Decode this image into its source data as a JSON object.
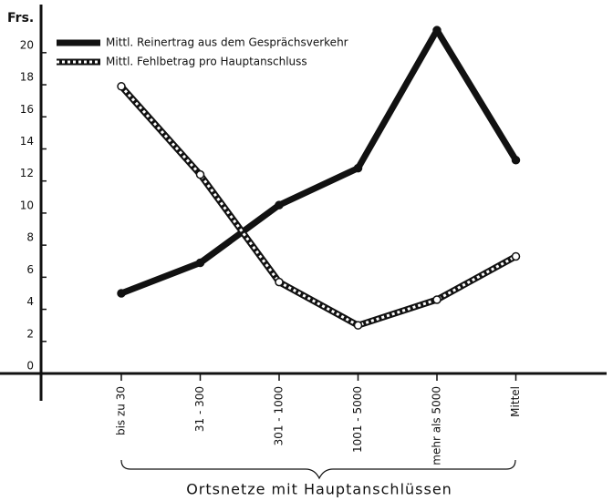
{
  "chart_data": {
    "type": "line",
    "y_unit": "Frs.",
    "x_label": "Ortsnetze mit Hauptanschlüssen",
    "categories": [
      "bis zu 30",
      "31 - 300",
      "301 - 1000",
      "1001 - 5000",
      "mehr als 5000",
      "Mittel"
    ],
    "series": [
      {
        "name": "Mittl. Reinertrag aus dem Gesprächsverkehr",
        "color": "#111",
        "dashed": false,
        "values": [
          5.0,
          6.9,
          10.5,
          12.8,
          21.4,
          13.3
        ]
      },
      {
        "name": "Mittl. Fehlbetrag pro Hauptanschluss",
        "color": "#111",
        "dashed": true,
        "values": [
          17.9,
          12.4,
          5.7,
          3.0,
          4.6,
          7.3
        ]
      }
    ],
    "ylim": [
      0,
      23
    ],
    "yticks": [
      0,
      2,
      4,
      6,
      8,
      10,
      12,
      14,
      16,
      18,
      20
    ],
    "grid": false,
    "legend": "upper left"
  }
}
